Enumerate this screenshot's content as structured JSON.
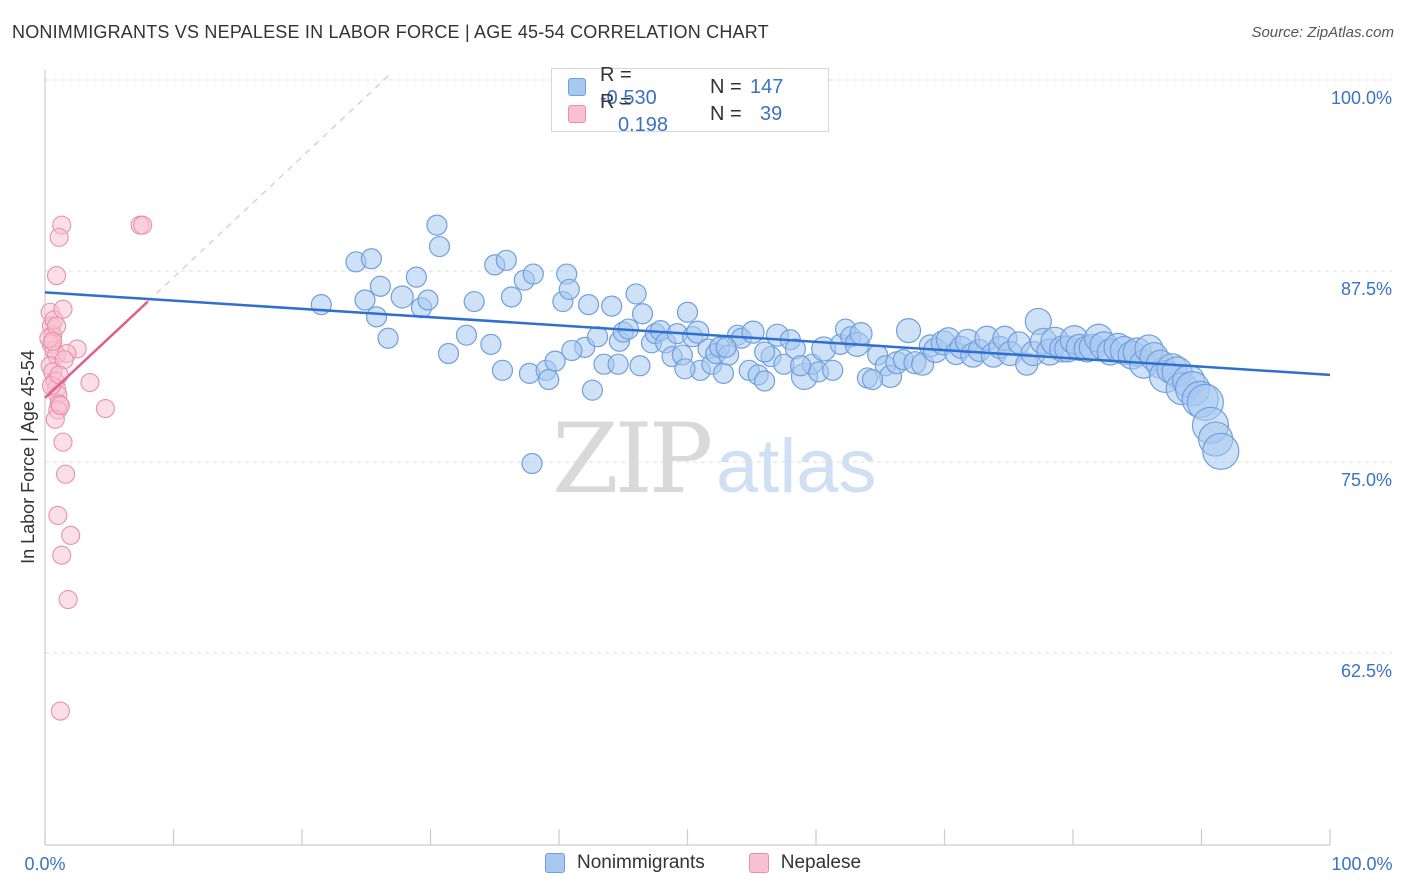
{
  "title": "NONIMMIGRANTS VS NEPALESE IN LABOR FORCE | AGE 45-54 CORRELATION CHART",
  "source": "Source: ZipAtlas.com",
  "watermark": {
    "zip": "ZIP",
    "atlas": "atlas"
  },
  "legend": [
    {
      "r_label": "R =",
      "r_value": "-0.530",
      "n_label": "N =",
      "n_value": "147",
      "color": "#a8c8f0",
      "border": "#6f9fdc"
    },
    {
      "r_label": "R =",
      "r_value": "0.198",
      "n_label": "N =",
      "n_value": "39",
      "color": "#f8c0d0",
      "border": "#e890aa"
    }
  ],
  "bottom_legend": [
    "Nonimmigrants",
    "Nepalese"
  ],
  "chart_data": {
    "type": "scatter",
    "title": "NONIMMIGRANTS VS NEPALESE IN LABOR FORCE | AGE 45-54 CORRELATION CHART",
    "xlabel": "",
    "ylabel": "In Labor Force | Age 45-54",
    "xlim": [
      0,
      100
    ],
    "ylim": [
      50,
      100
    ],
    "x_tick_labels": [
      "0.0%",
      "100.0%"
    ],
    "y_ticks": [
      100,
      87.5,
      75,
      62.5
    ],
    "y_tick_labels": [
      "100.0%",
      "87.5%",
      "75.0%",
      "62.5%"
    ],
    "grid": true,
    "legend_position": "top-center",
    "series": [
      {
        "name": "Nonimmigrants",
        "color": "#6f9fdc",
        "fill": "#a8c8f0",
        "trend": {
          "x": [
            0,
            100
          ],
          "y": [
            86.1,
            80.7
          ]
        },
        "points": [
          [
            21.5,
            85.3,
            10
          ],
          [
            24.2,
            88.1,
            10
          ],
          [
            25.4,
            88.3,
            10
          ],
          [
            24.9,
            85.6,
            10
          ],
          [
            26.1,
            86.5,
            10
          ],
          [
            25.8,
            84.5,
            10
          ],
          [
            26.7,
            83.1,
            10
          ],
          [
            27.8,
            85.8,
            11
          ],
          [
            28.9,
            87.1,
            10
          ],
          [
            29.3,
            85.1,
            10
          ],
          [
            29.8,
            85.6,
            10
          ],
          [
            30.5,
            90.5,
            10
          ],
          [
            30.7,
            89.1,
            10
          ],
          [
            31.4,
            82.1,
            10
          ],
          [
            32.8,
            83.3,
            10
          ],
          [
            33.4,
            85.5,
            10
          ],
          [
            34.7,
            82.7,
            10
          ],
          [
            35.0,
            87.9,
            10
          ],
          [
            35.6,
            81.0,
            10
          ],
          [
            35.9,
            88.2,
            10
          ],
          [
            36.3,
            85.8,
            10
          ],
          [
            37.3,
            86.9,
            10
          ],
          [
            37.7,
            80.8,
            10
          ],
          [
            38.0,
            87.3,
            10
          ],
          [
            39.0,
            81.0,
            10
          ],
          [
            39.2,
            80.4,
            10
          ],
          [
            39.7,
            81.6,
            10
          ],
          [
            40.3,
            85.5,
            10
          ],
          [
            40.6,
            87.3,
            10
          ],
          [
            40.8,
            86.3,
            10
          ],
          [
            42.0,
            82.5,
            10
          ],
          [
            42.3,
            85.3,
            10
          ],
          [
            42.6,
            79.7,
            10
          ],
          [
            43.0,
            83.2,
            10
          ],
          [
            43.5,
            81.4,
            10
          ],
          [
            44.1,
            85.2,
            10
          ],
          [
            44.7,
            82.9,
            10
          ],
          [
            45.0,
            83.5,
            10
          ],
          [
            45.4,
            83.7,
            10
          ],
          [
            46.0,
            86.0,
            10
          ],
          [
            46.3,
            81.3,
            10
          ],
          [
            46.5,
            84.7,
            10
          ],
          [
            47.2,
            82.8,
            10
          ],
          [
            47.5,
            83.4,
            10
          ],
          [
            47.9,
            83.6,
            10
          ],
          [
            48.3,
            82.8,
            10
          ],
          [
            48.8,
            81.9,
            10
          ],
          [
            49.2,
            83.4,
            10
          ],
          [
            49.6,
            82.0,
            10
          ],
          [
            50.0,
            84.8,
            10
          ],
          [
            50.4,
            83.2,
            10
          ],
          [
            50.8,
            83.5,
            11
          ],
          [
            51.0,
            81.0,
            10
          ],
          [
            51.6,
            82.4,
            10
          ],
          [
            51.9,
            81.4,
            10
          ],
          [
            52.2,
            82.1,
            10
          ],
          [
            52.5,
            82.5,
            10
          ],
          [
            52.8,
            80.8,
            10
          ],
          [
            53.2,
            82.0,
            10
          ],
          [
            53.9,
            83.3,
            10
          ],
          [
            54.2,
            83.1,
            10
          ],
          [
            54.8,
            81.0,
            10
          ],
          [
            55.1,
            83.5,
            11
          ],
          [
            55.5,
            80.7,
            10
          ],
          [
            56.0,
            80.3,
            10
          ],
          [
            56.5,
            81.9,
            10
          ],
          [
            57.0,
            83.3,
            11
          ],
          [
            57.5,
            81.4,
            10
          ],
          [
            58.0,
            83.0,
            10
          ],
          [
            58.4,
            82.4,
            10
          ],
          [
            59.1,
            80.6,
            13
          ],
          [
            59.7,
            81.4,
            10
          ],
          [
            60.2,
            80.9,
            10
          ],
          [
            60.6,
            82.4,
            12
          ],
          [
            61.3,
            81.0,
            10
          ],
          [
            61.9,
            82.7,
            10
          ],
          [
            62.3,
            83.7,
            10
          ],
          [
            62.7,
            83.2,
            10
          ],
          [
            63.2,
            82.7,
            12
          ],
          [
            63.5,
            83.4,
            11
          ],
          [
            64.0,
            80.5,
            10
          ],
          [
            64.8,
            82.0,
            10
          ],
          [
            65.4,
            81.3,
            10
          ],
          [
            65.8,
            80.6,
            11
          ],
          [
            66.3,
            81.5,
            11
          ],
          [
            66.8,
            81.7,
            10
          ],
          [
            67.2,
            83.6,
            12
          ],
          [
            67.7,
            81.5,
            11
          ],
          [
            68.3,
            81.4,
            11
          ],
          [
            68.9,
            82.6,
            11
          ],
          [
            69.3,
            82.3,
            12
          ],
          [
            69.9,
            82.8,
            12
          ],
          [
            70.3,
            83.0,
            12
          ],
          [
            70.9,
            82.1,
            11
          ],
          [
            71.3,
            82.5,
            11
          ],
          [
            71.8,
            82.9,
            12
          ],
          [
            72.2,
            82.0,
            12
          ],
          [
            72.7,
            82.3,
            11
          ],
          [
            73.3,
            83.1,
            12
          ],
          [
            73.8,
            82.0,
            12
          ],
          [
            74.3,
            82.5,
            11
          ],
          [
            74.7,
            83.1,
            12
          ],
          [
            75.1,
            82.1,
            12
          ],
          [
            75.8,
            82.8,
            11
          ],
          [
            76.4,
            81.4,
            11
          ],
          [
            76.9,
            82.1,
            12
          ],
          [
            77.3,
            84.2,
            13
          ],
          [
            77.7,
            82.9,
            13
          ],
          [
            78.2,
            82.2,
            13
          ],
          [
            78.6,
            82.9,
            14
          ],
          [
            79.2,
            82.4,
            13
          ],
          [
            79.6,
            82.4,
            13
          ],
          [
            80.1,
            83.0,
            14
          ],
          [
            80.5,
            82.5,
            13
          ],
          [
            81.1,
            82.4,
            13
          ],
          [
            81.5,
            82.5,
            13
          ],
          [
            82.0,
            83.1,
            14
          ],
          [
            82.4,
            82.6,
            14
          ],
          [
            82.9,
            82.2,
            13
          ],
          [
            83.5,
            82.5,
            14
          ],
          [
            84.0,
            82.3,
            14
          ],
          [
            84.6,
            82.0,
            14
          ],
          [
            85.0,
            82.2,
            14
          ],
          [
            85.5,
            81.4,
            14
          ],
          [
            85.9,
            82.4,
            14
          ],
          [
            86.3,
            81.9,
            14
          ],
          [
            86.8,
            81.4,
            14
          ],
          [
            87.2,
            80.6,
            16
          ],
          [
            87.7,
            81.1,
            15
          ],
          [
            88.1,
            80.9,
            15
          ],
          [
            88.5,
            79.8,
            16
          ],
          [
            89.0,
            80.3,
            16
          ],
          [
            89.3,
            79.8,
            17
          ],
          [
            89.9,
            79.1,
            18
          ],
          [
            90.3,
            78.9,
            18
          ],
          [
            90.7,
            77.4,
            18
          ],
          [
            91.1,
            76.5,
            17
          ],
          [
            91.5,
            75.7,
            18
          ],
          [
            37.9,
            74.9,
            10
          ],
          [
            64.4,
            80.4,
            10
          ],
          [
            58.8,
            81.3,
            10
          ],
          [
            56.0,
            82.2,
            10
          ],
          [
            53.0,
            82.5,
            10
          ],
          [
            44.6,
            81.4,
            10
          ],
          [
            49.8,
            81.1,
            10
          ],
          [
            41.0,
            82.3,
            10
          ]
        ]
      },
      {
        "name": "Nepalese",
        "color": "#e890aa",
        "fill": "#f8c0d0",
        "trend": {
          "x": [
            0,
            8
          ],
          "y": [
            79.2,
            85.5
          ]
        },
        "trend_dashed": {
          "x": [
            8,
            27
          ],
          "y": [
            85.5,
            100.5
          ]
        },
        "points": [
          [
            0.4,
            84.8,
            9
          ],
          [
            0.5,
            83.9,
            9
          ],
          [
            0.6,
            83.3,
            9
          ],
          [
            0.7,
            84.3,
            9
          ],
          [
            0.5,
            82.7,
            9
          ],
          [
            0.7,
            82.3,
            9
          ],
          [
            0.9,
            82.0,
            9
          ],
          [
            0.4,
            81.3,
            9
          ],
          [
            0.6,
            80.9,
            9
          ],
          [
            0.8,
            80.3,
            9
          ],
          [
            0.9,
            79.8,
            9
          ],
          [
            1.0,
            79.4,
            9
          ],
          [
            1.1,
            78.8,
            9
          ],
          [
            1.0,
            78.4,
            9
          ],
          [
            0.8,
            77.8,
            9
          ],
          [
            1.2,
            78.7,
            9
          ],
          [
            1.4,
            76.3,
            9
          ],
          [
            1.6,
            74.2,
            9
          ],
          [
            1.0,
            71.5,
            9
          ],
          [
            2.0,
            70.2,
            9
          ],
          [
            1.3,
            68.9,
            9
          ],
          [
            1.8,
            66.0,
            9
          ],
          [
            1.2,
            58.7,
            9
          ],
          [
            1.3,
            90.5,
            9
          ],
          [
            1.1,
            89.7,
            9
          ],
          [
            0.9,
            87.2,
            9
          ],
          [
            1.4,
            85.0,
            9
          ],
          [
            2.5,
            82.4,
            9
          ],
          [
            1.7,
            82.1,
            9
          ],
          [
            3.5,
            80.2,
            9
          ],
          [
            4.7,
            78.5,
            9
          ],
          [
            7.4,
            90.5,
            9
          ],
          [
            7.6,
            90.5,
            9
          ],
          [
            0.3,
            83.1,
            9
          ],
          [
            0.5,
            80.0,
            9
          ],
          [
            0.9,
            83.9,
            9
          ],
          [
            1.5,
            81.7,
            9
          ],
          [
            1.1,
            80.7,
            9
          ],
          [
            0.6,
            82.9,
            9
          ]
        ]
      }
    ]
  }
}
